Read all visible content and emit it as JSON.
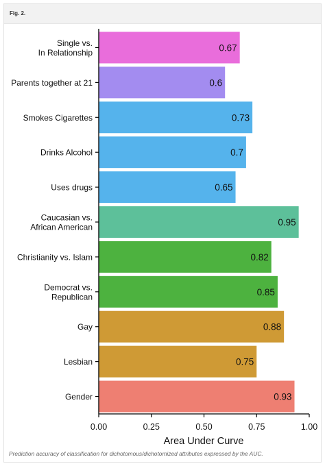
{
  "figure": {
    "label": "Fig. 2.",
    "caption": "Prediction accuracy of classification for dichotomous/dichotomized attributes expressed by the AUC."
  },
  "chart_data": {
    "type": "bar",
    "orientation": "horizontal",
    "xlabel": "Area Under Curve",
    "ylabel": "",
    "xlim": [
      0,
      1
    ],
    "x_ticks": [
      "0.00",
      "0.25",
      "0.50",
      "0.75",
      "1.00"
    ],
    "grid": false,
    "categories": [
      [
        "Single vs.",
        "In Relationship"
      ],
      [
        "Parents together at 21"
      ],
      [
        "Smokes Cigarettes"
      ],
      [
        "Drinks Alcohol"
      ],
      [
        "Uses drugs"
      ],
      [
        "Caucasian vs.",
        "African American"
      ],
      [
        "Christianity vs. Islam"
      ],
      [
        "Democrat vs.",
        "Republican"
      ],
      [
        "Gay"
      ],
      [
        "Lesbian"
      ],
      [
        "Gender"
      ]
    ],
    "values": [
      0.67,
      0.6,
      0.73,
      0.7,
      0.65,
      0.95,
      0.82,
      0.85,
      0.88,
      0.75,
      0.93
    ],
    "value_labels": [
      "0.67",
      "0.6",
      "0.73",
      "0.7",
      "0.65",
      "0.95",
      "0.82",
      "0.85",
      "0.88",
      "0.75",
      "0.93"
    ],
    "colors": [
      "#e96ddb",
      "#a38cf0",
      "#55b3ec",
      "#55b3ec",
      "#55b3ec",
      "#5dc09a",
      "#4db23f",
      "#4db23f",
      "#cf9a35",
      "#cf9a35",
      "#ee7f72"
    ]
  }
}
